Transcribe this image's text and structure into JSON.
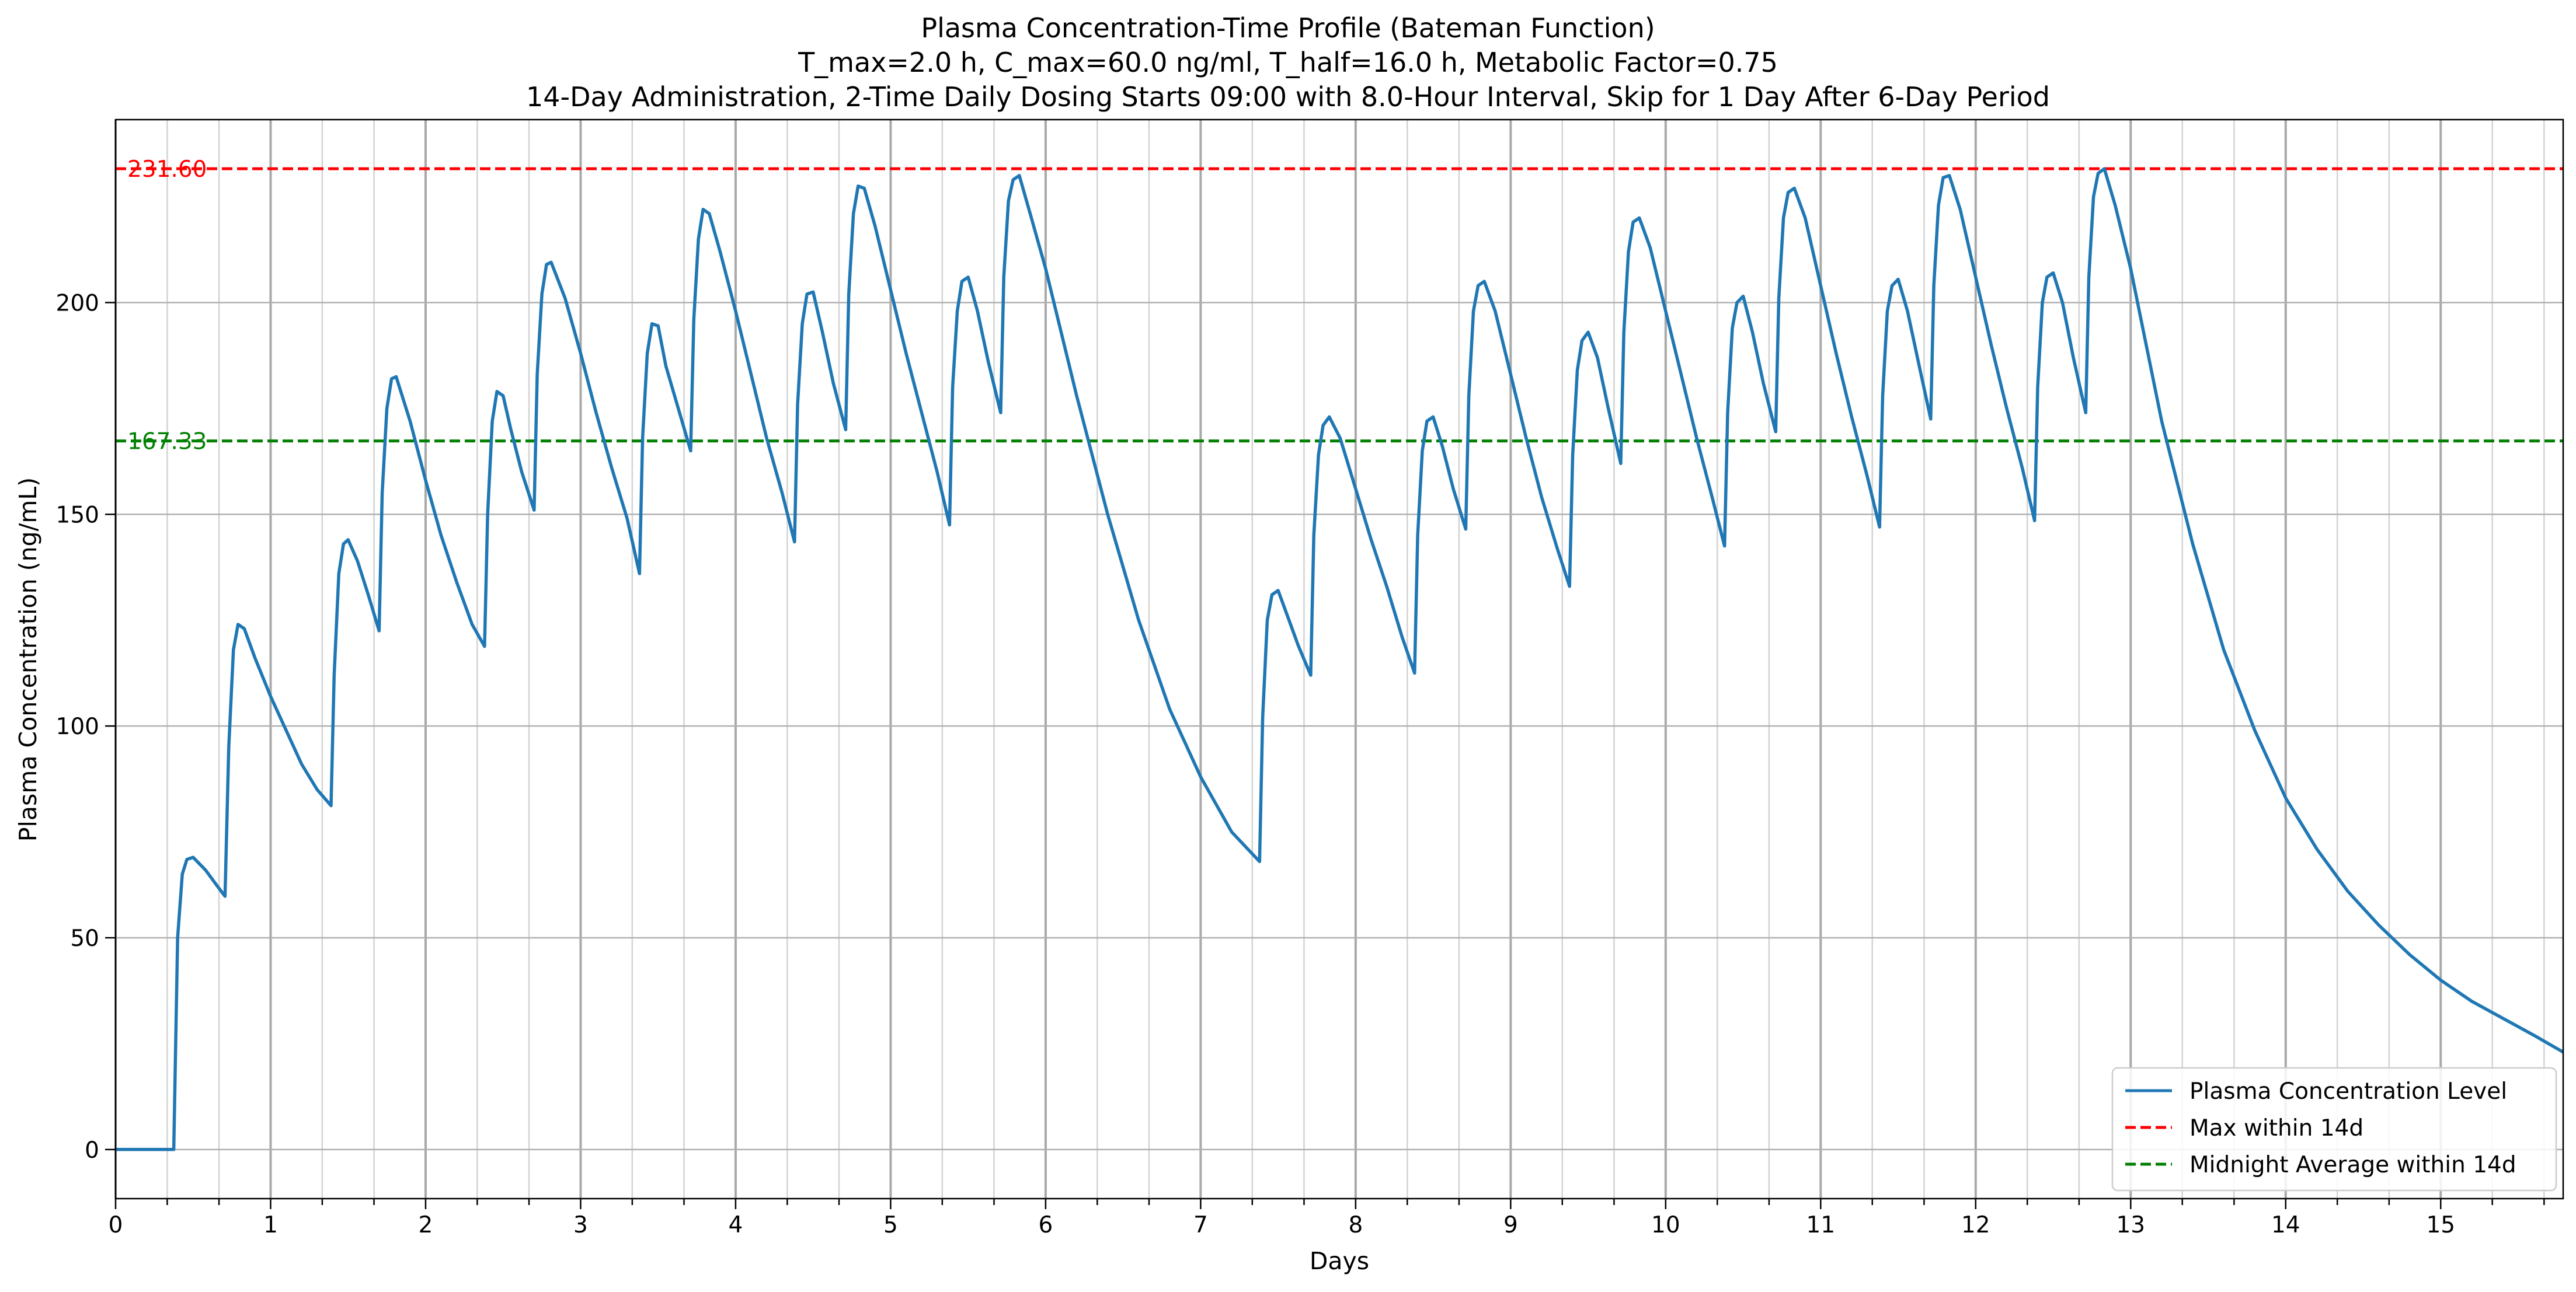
{
  "chart_data": {
    "type": "line",
    "title": [
      "Plasma Concentration-Time Profile (Bateman Function)",
      "T_max=2.0 h, C_max=60.0 ng/ml, T_half=16.0 h, Metabolic Factor=0.75",
      "14-Day Administration, 2-Time Daily Dosing Starts 09:00 with 8.0-Hour Interval, Skip for 1 Day After 6-Day Period"
    ],
    "xlabel": "Days",
    "ylabel": "Plasma Concentration (ng/mL)",
    "xlim": [
      0,
      15.79
    ],
    "ylim": [
      -11.6,
      243.2
    ],
    "x_ticks": [
      0,
      1,
      2,
      3,
      4,
      5,
      6,
      7,
      8,
      9,
      10,
      11,
      12,
      13,
      14,
      15
    ],
    "x_tick_labels": [
      "0",
      "1",
      "2",
      "3",
      "4",
      "5",
      "6",
      "7",
      "8",
      "9",
      "10",
      "11",
      "12",
      "13",
      "14",
      "15"
    ],
    "x_minor_ticks": [
      0.333,
      0.667,
      1.333,
      1.667,
      2.333,
      2.667,
      3.333,
      3.667,
      4.333,
      4.667,
      5.333,
      5.667,
      6.333,
      6.667,
      7.333,
      7.667,
      8.333,
      8.667,
      9.333,
      9.667,
      10.333,
      10.667,
      11.333,
      11.667,
      12.333,
      12.667,
      13.333,
      13.667,
      14.333,
      14.667,
      15.333,
      15.667
    ],
    "y_ticks": [
      0,
      50,
      100,
      150,
      200
    ],
    "y_tick_labels": [
      "0",
      "50",
      "100",
      "150",
      "200"
    ],
    "grid": true,
    "reference_lines": [
      {
        "name": "Max within 14d",
        "y": 231.6,
        "label": "231.60",
        "color": "#ff0000",
        "dash": true
      },
      {
        "name": "Midnight Average within 14d",
        "y": 167.33,
        "label": "167.33",
        "color": "#008000",
        "dash": true
      }
    ],
    "series": [
      {
        "name": "Plasma Concentration Level",
        "color": "#1f77b4",
        "x": [
          0,
          0.375,
          0.4,
          0.43,
          0.46,
          0.5,
          0.58,
          0.65,
          0.706,
          0.73,
          0.76,
          0.79,
          0.83,
          0.9,
          1.0,
          1.1,
          1.2,
          1.3,
          1.39,
          1.41,
          1.44,
          1.47,
          1.5,
          1.56,
          1.63,
          1.7,
          1.72,
          1.75,
          1.78,
          1.81,
          1.9,
          2.0,
          2.1,
          2.2,
          2.3,
          2.38,
          2.4,
          2.43,
          2.46,
          2.5,
          2.55,
          2.62,
          2.7,
          2.72,
          2.75,
          2.78,
          2.81,
          2.9,
          3.0,
          3.1,
          3.2,
          3.3,
          3.38,
          3.4,
          3.43,
          3.46,
          3.5,
          3.55,
          3.63,
          3.71,
          3.73,
          3.76,
          3.79,
          3.83,
          3.9,
          4.0,
          4.1,
          4.2,
          4.3,
          4.38,
          4.4,
          4.43,
          4.46,
          4.5,
          4.56,
          4.63,
          4.71,
          4.73,
          4.76,
          4.79,
          4.83,
          4.9,
          5.0,
          5.1,
          5.2,
          5.3,
          5.38,
          5.4,
          5.43,
          5.46,
          5.5,
          5.56,
          5.63,
          5.71,
          5.73,
          5.76,
          5.79,
          5.83,
          5.9,
          6.0,
          6.2,
          6.4,
          6.6,
          6.8,
          7.0,
          7.2,
          7.38,
          7.4,
          7.43,
          7.46,
          7.5,
          7.56,
          7.63,
          7.71,
          7.73,
          7.76,
          7.79,
          7.83,
          7.9,
          8.0,
          8.1,
          8.2,
          8.3,
          8.38,
          8.4,
          8.43,
          8.46,
          8.5,
          8.56,
          8.63,
          8.71,
          8.73,
          8.76,
          8.79,
          8.83,
          8.9,
          9.0,
          9.1,
          9.2,
          9.3,
          9.38,
          9.4,
          9.43,
          9.46,
          9.5,
          9.56,
          9.63,
          9.71,
          9.73,
          9.76,
          9.79,
          9.83,
          9.9,
          10.0,
          10.1,
          10.2,
          10.3,
          10.38,
          10.4,
          10.43,
          10.46,
          10.5,
          10.56,
          10.63,
          10.71,
          10.73,
          10.76,
          10.79,
          10.83,
          10.9,
          11.0,
          11.1,
          11.2,
          11.3,
          11.38,
          11.4,
          11.43,
          11.46,
          11.5,
          11.56,
          11.63,
          11.71,
          11.73,
          11.76,
          11.79,
          11.83,
          11.9,
          12.0,
          12.1,
          12.2,
          12.3,
          12.38,
          12.4,
          12.43,
          12.46,
          12.5,
          12.56,
          12.63,
          12.71,
          12.73,
          12.76,
          12.79,
          12.83,
          12.9,
          13.0,
          13.2,
          13.4,
          13.6,
          13.8,
          14.0,
          14.2,
          14.4,
          14.6,
          14.8,
          15.0,
          15.2,
          15.4,
          15.6,
          15.79
        ],
        "y": [
          0,
          0,
          50,
          65,
          68.5,
          69,
          66,
          62.5,
          59.8,
          95,
          118,
          124,
          123,
          116,
          107,
          99,
          91,
          85,
          81.2,
          112,
          136,
          143,
          144,
          139,
          131,
          122.5,
          155,
          175,
          182,
          182.5,
          172,
          158,
          145,
          134,
          124,
          118.8,
          150,
          172,
          179,
          178,
          170,
          160,
          151,
          183,
          202,
          209,
          209.5,
          201,
          188,
          174,
          161,
          149,
          136,
          168,
          188,
          195,
          194.5,
          185,
          175,
          165,
          196,
          215,
          222,
          221,
          212,
          198,
          183,
          168,
          155,
          143.5,
          176,
          195,
          202,
          202.5,
          193,
          181,
          170,
          202,
          221,
          227.5,
          227,
          218,
          203,
          188,
          174,
          160,
          147.5,
          180,
          198,
          205,
          206,
          198,
          186,
          174,
          206,
          224,
          229,
          230,
          221,
          208,
          178,
          150,
          125,
          104,
          88,
          75,
          68,
          102,
          125,
          131,
          132,
          126,
          119,
          112,
          145,
          164,
          171,
          173,
          168,
          156,
          144,
          133,
          121,
          112.5,
          145,
          165,
          172,
          173,
          166,
          156,
          146.5,
          178,
          198,
          204,
          205,
          198,
          183,
          168,
          154,
          142,
          133,
          164,
          184,
          191,
          193,
          187,
          175,
          162,
          193,
          212,
          219,
          220,
          213,
          198,
          183,
          168,
          154,
          142.5,
          174,
          194,
          200,
          201.5,
          193,
          181,
          169.5,
          201,
          220,
          226,
          227,
          220,
          204,
          188,
          173,
          159,
          147,
          178,
          198,
          204,
          205.5,
          198,
          186,
          172.5,
          204,
          223,
          229.5,
          230,
          222,
          206,
          190,
          175,
          161,
          148.5,
          180,
          200,
          206,
          207,
          200,
          187,
          174,
          206,
          225,
          230.5,
          231.6,
          223,
          208,
          172,
          143,
          118,
          99,
          83,
          71,
          61,
          53,
          46,
          40,
          35,
          31,
          27,
          23
        ]
      }
    ],
    "legend": {
      "position": "lower-right",
      "entries": [
        {
          "label": "Plasma Concentration Level",
          "color": "#1f77b4",
          "dash": false
        },
        {
          "label": "Max within 14d",
          "color": "#ff0000",
          "dash": true
        },
        {
          "label": "Midnight Average within 14d",
          "color": "#008000",
          "dash": true
        }
      ]
    }
  }
}
